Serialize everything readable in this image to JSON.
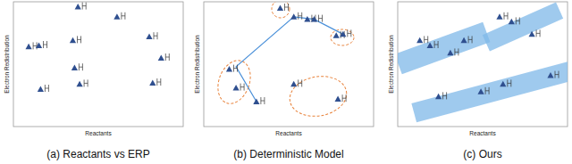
{
  "chart_data": [
    {
      "type": "scatter",
      "title": "(a) Reactants vs ERP",
      "x_label": "Reactants",
      "y_label": "Electron Redistribution",
      "xlim": [
        0,
        1
      ],
      "ylim": [
        0,
        1
      ],
      "tick_labels": false,
      "series": [
        {
          "color": "#2f4f8f",
          "marker": "triangle",
          "x": [
            0.38,
            0.61,
            0.09,
            0.15,
            0.35,
            0.8,
            0.87,
            0.36,
            0.16,
            0.39,
            0.82
          ],
          "values": [
            0.96,
            0.88,
            0.64,
            0.65,
            0.69,
            0.72,
            0.55,
            0.47,
            0.3,
            0.34,
            0.35
          ]
        }
      ]
    },
    {
      "type": "scatter",
      "title": "(b) Deterministic Model",
      "x_label": "Reactants",
      "y_label": "Electron Redistribution",
      "xlim": [
        0,
        1
      ],
      "ylim": [
        0,
        1
      ],
      "tick_labels": false,
      "series": [
        {
          "color": "#2f4f8f",
          "marker": "triangle",
          "x": [
            0.45,
            0.53,
            0.61,
            0.65,
            0.78,
            0.82,
            0.15,
            0.19,
            0.31,
            0.53,
            0.79
          ],
          "values": [
            0.95,
            0.88,
            0.86,
            0.86,
            0.73,
            0.74,
            0.46,
            0.31,
            0.2,
            0.34,
            0.22
          ]
        },
        {
          "type": "line",
          "color": "#4a90d9",
          "line_style": "solid",
          "x": [
            0.31,
            0.19,
            0.53,
            0.65,
            0.82
          ],
          "values": [
            0.2,
            0.48,
            0.88,
            0.86,
            0.74
          ]
        }
      ]
    },
    {
      "type": "scatter",
      "title": "(c) Ours",
      "x_label": "Reactants",
      "y_label": "Electron Redistribution",
      "xlim": [
        0,
        1
      ],
      "ylim": [
        0,
        1
      ],
      "tick_labels": false,
      "series": [
        {
          "color": "#2f4f8f",
          "marker": "triangle",
          "x": [
            0.13,
            0.19,
            0.31,
            0.39,
            0.6,
            0.67,
            0.79,
            0.24,
            0.49,
            0.62,
            0.9
          ],
          "values": [
            0.69,
            0.65,
            0.59,
            0.69,
            0.88,
            0.84,
            0.74,
            0.24,
            0.28,
            0.34,
            0.41
          ]
        }
      ]
    }
  ]
}
